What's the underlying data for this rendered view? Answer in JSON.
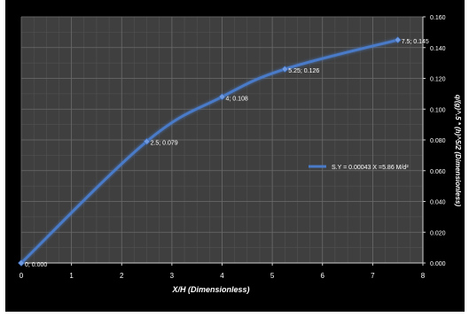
{
  "chart_data": {
    "type": "line",
    "title": "",
    "xlabel": "X/H  (Dimensionless)",
    "ylabel": "q/(g)^.5 * (h)^5/2   (Dimensionless)",
    "xlim": [
      0,
      8
    ],
    "ylim": [
      0,
      0.16
    ],
    "x_ticks": [
      "0",
      "1",
      "2",
      "3",
      "4",
      "5",
      "6",
      "7",
      "8"
    ],
    "y_ticks": [
      "0.000",
      "0.020",
      "0.040",
      "0.060",
      "0.080",
      "0.100",
      "0.120",
      "0.140",
      "0.160"
    ],
    "y_axis_side": "right",
    "grid": true,
    "legend_position": "right",
    "series": [
      {
        "name": "S.Y = 0.00043   X =5.86 M/d²",
        "color": "#4a7bc8",
        "x": [
          0,
          2.5,
          4,
          5.25,
          7.5
        ],
        "y": [
          0.0,
          0.079,
          0.108,
          0.126,
          0.145
        ],
        "labels": [
          "0; 0.000",
          "2.5; 0.079",
          "4; 0.108",
          "5.25; 0.126",
          "7.5; 0.145"
        ]
      }
    ],
    "colors": {
      "background": "#000000",
      "plot_area": "#3f3f3f",
      "gridline": "#6a6a6a",
      "text": "#ffffff",
      "axis": "#d0d0d0"
    }
  }
}
